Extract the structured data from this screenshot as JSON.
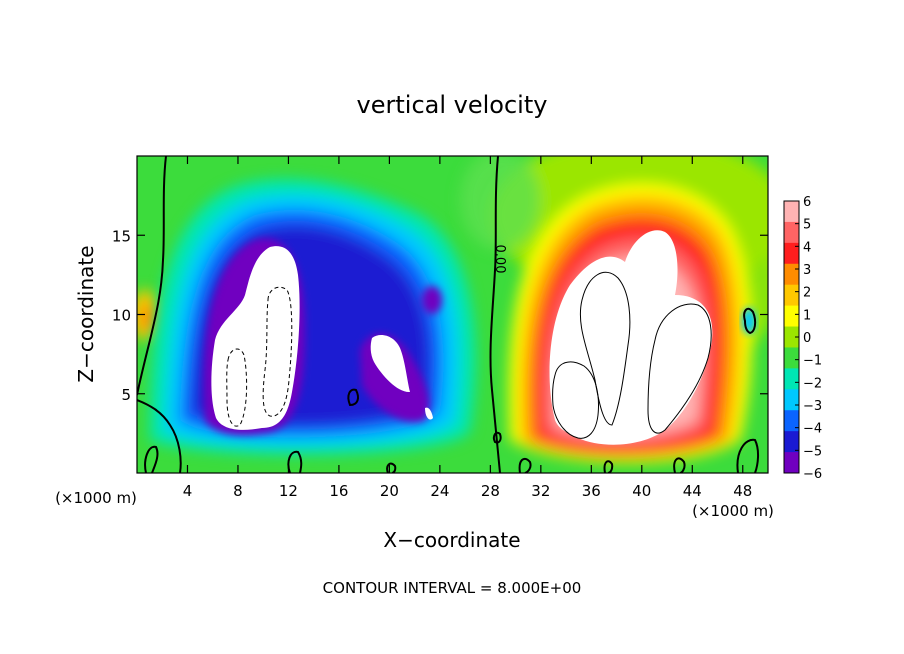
{
  "chart_data": {
    "type": "heatmap",
    "title": "vertical velocity",
    "xlabel": "X−coordinate",
    "ylabel": "Z−coordinate",
    "x_unit_left": "(×1000 m)",
    "x_unit_right": "(×1000 m)",
    "xlim": [
      0,
      50
    ],
    "ylim": [
      0,
      20
    ],
    "x_ticks": [
      4,
      8,
      12,
      16,
      20,
      24,
      28,
      32,
      36,
      40,
      44,
      48
    ],
    "y_ticks": [
      5,
      10,
      15
    ],
    "colorbar": {
      "labels": [
        "6",
        "5",
        "4",
        "3",
        "2",
        "1",
        "0",
        "−1",
        "−2",
        "−3",
        "−4",
        "−5",
        "−6"
      ],
      "colors": [
        "#ffb3b3",
        "#ff6464",
        "#ff1e1e",
        "#ff8c00",
        "#ffc800",
        "#ffff00",
        "#9be600",
        "#3cdc3c",
        "#00e6b4",
        "#00c8ff",
        "#0a64ff",
        "#1a1ad2",
        "#7000c0"
      ],
      "range": [
        -6,
        6
      ]
    },
    "contour_label": "0.00",
    "footer": "CONTOUR INTERVAL = 8.000E+00",
    "features": [
      {
        "x": 10.5,
        "z": 8,
        "w": -6.5,
        "description": "downdraft core"
      },
      {
        "x": 20,
        "z": 6.5,
        "w": -6.5,
        "description": "downdraft core"
      },
      {
        "x": 24.5,
        "z": 9,
        "w": -4.5,
        "description": "weak downdraft"
      },
      {
        "x": 37,
        "z": 8,
        "w": 6.5,
        "description": "updraft core"
      },
      {
        "x": 42,
        "z": 10.5,
        "w": 6.5,
        "description": "updraft core"
      }
    ]
  }
}
